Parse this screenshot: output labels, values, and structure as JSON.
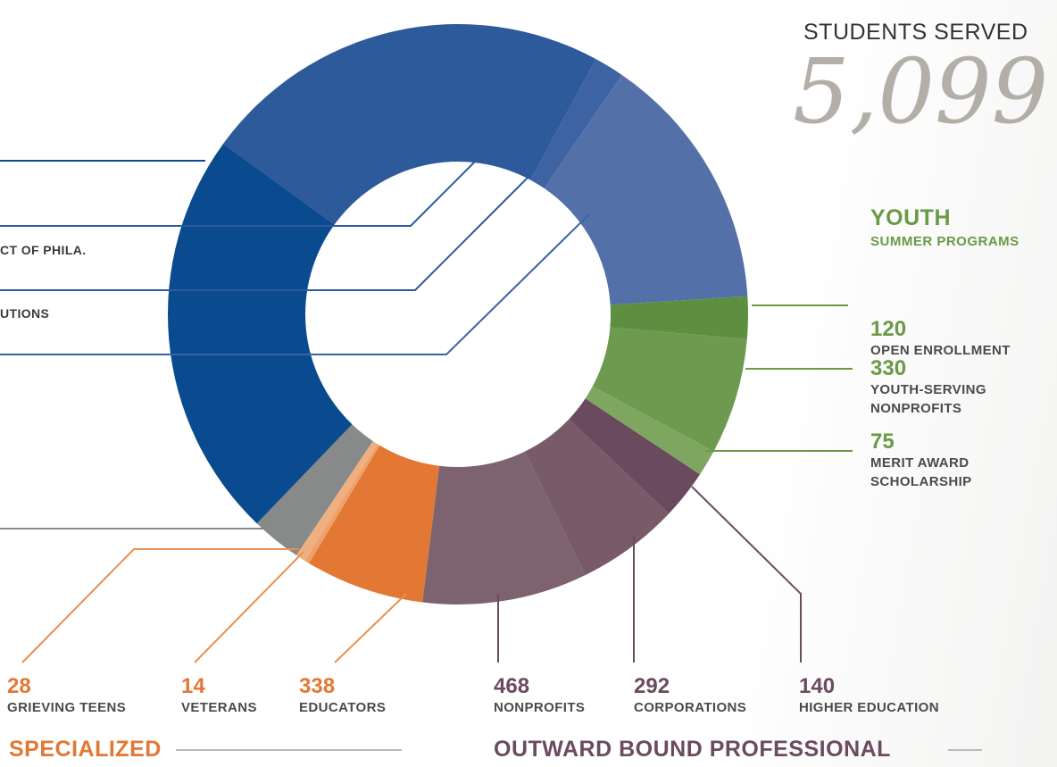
{
  "chart_data": {
    "type": "donut",
    "title": "STUDENTS SERVED",
    "total": "5,099",
    "groups": [
      {
        "name": "YOUTH",
        "subtitle": "SUMMER PROGRAMS",
        "color": "#6a9a45"
      },
      {
        "name": "SPECIALIZED",
        "color": "#e27834"
      },
      {
        "name": "OUTWARD BOUND PROFESSIONAL",
        "color": "#6b4b5f"
      }
    ],
    "categories": [
      null,
      null,
      null,
      "OPEN ENROLLMENT",
      "YOUTH-SERVING NONPROFITS",
      "MERIT AWARD SCHOLARSHIP",
      "HIGHER EDUCATION",
      "CORPORATIONS",
      "NONPROFITS",
      "EDUCATORS",
      "VETERANS",
      "GRIEVING TEENS",
      null,
      null
    ],
    "values": [
      1167,
      85,
      737,
      120,
      330,
      75,
      140,
      292,
      468,
      338,
      14,
      28,
      142,
      1163
    ],
    "colors": [
      "#2d5a9a",
      "#3d63a3",
      "#5470a8",
      "#5e8f40",
      "#6e9a50",
      "#7fa660",
      "#6a4a5e",
      "#785a68",
      "#7d636f",
      "#e27834",
      "#f0a06a",
      "#eeb080",
      "#878a89",
      "#0a4a8f"
    ],
    "annotations": [
      "CT OF PHILA.",
      "UTIONS"
    ]
  }
}
